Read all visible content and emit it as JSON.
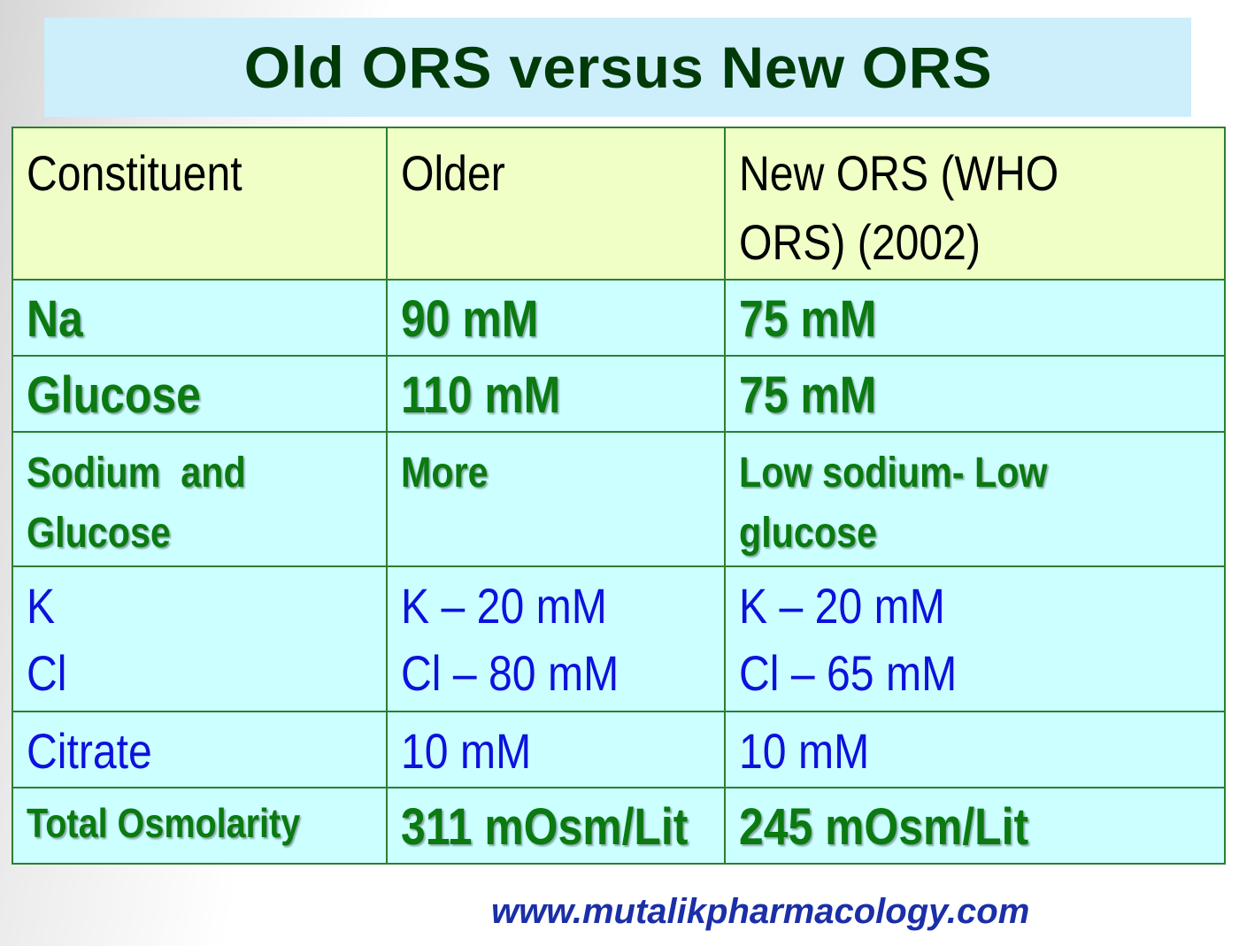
{
  "title": "Old ORS versus New ORS",
  "table": {
    "headers": [
      "Constituent",
      "Older",
      "New ORS (WHO ORS) (2002)"
    ],
    "header_lines": {
      "col3": [
        "New ORS (WHO",
        "ORS) (2002)"
      ]
    },
    "rows": [
      {
        "constituent": "Na",
        "older": "90 mM",
        "new": "75 mM"
      },
      {
        "constituent": "Glucose",
        "older": "110 mM",
        "new": "75 mM"
      },
      {
        "constituent_lines": [
          "Sodium  and",
          "Glucose"
        ],
        "older": "More",
        "new_lines": [
          "Low sodium- Low",
          "glucose"
        ]
      },
      {
        "constituent_lines": [
          "K",
          "Cl"
        ],
        "older_lines": [
          "K – 20 mM",
          "Cl – 80 mM"
        ],
        "new_lines": [
          "K – 20 mM",
          "Cl – 65 mM"
        ]
      },
      {
        "constituent": "Citrate",
        "older": "10 mM",
        "new": "10 mM"
      },
      {
        "constituent": "Total Osmolarity",
        "older": "311 mOsm/Lit",
        "new": "245 mOsm/Lit"
      }
    ]
  },
  "footer": "www.mutalikpharmacology.com",
  "colors": {
    "title_bg": "#cdeefb",
    "title_text": "#003a08",
    "header_bg": "#efffc6",
    "body_bg": "#ccffff",
    "border": "#2e7d32",
    "green_text": "#0b7a10",
    "blue_text": "#0c12dc",
    "footer_text": "#1a2fa8"
  }
}
